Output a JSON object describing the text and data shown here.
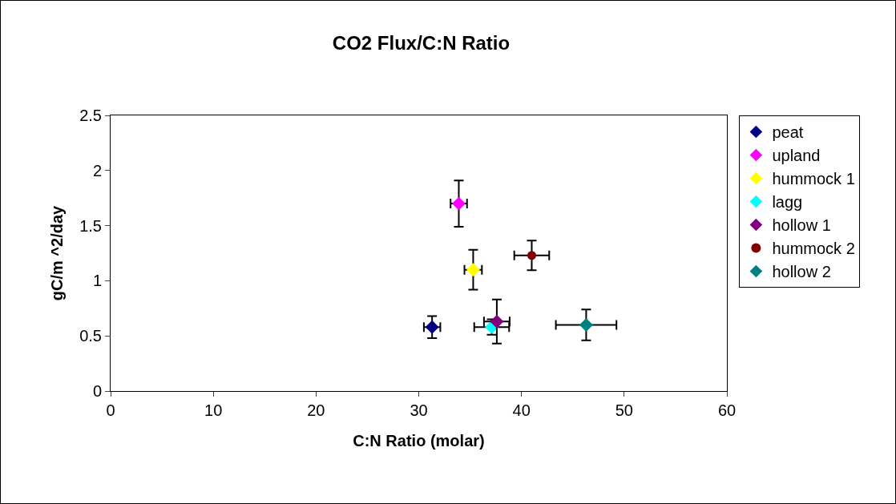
{
  "chart_data": {
    "type": "scatter",
    "title": "CO2 Flux/C:N Ratio",
    "xlabel": "C:N Ratio (molar)",
    "ylabel": "gC/m ^2/day",
    "xlim": [
      0,
      60
    ],
    "xticks": [
      0,
      10,
      20,
      30,
      40,
      50,
      60
    ],
    "ylim": [
      0,
      2.5
    ],
    "yticks": [
      0,
      0.5,
      1,
      1.5,
      2,
      2.5
    ],
    "grid": false,
    "legend": "right",
    "marker": "diamond",
    "series": [
      {
        "name": "peat",
        "color": "#000080",
        "x": [
          31.3
        ],
        "values": [
          0.58
        ],
        "errors": [
          0.1
        ],
        "xerrors": [
          0.8
        ]
      },
      {
        "name": "upland",
        "color": "#ff00ff",
        "x": [
          33.9
        ],
        "values": [
          1.7
        ],
        "errors": [
          0.21
        ],
        "xerrors": [
          0.8
        ]
      },
      {
        "name": "hummock 1",
        "color": "#ffff00",
        "x": [
          35.3
        ],
        "values": [
          1.1
        ],
        "errors": [
          0.18
        ],
        "xerrors": [
          0.85
        ]
      },
      {
        "name": "lagg",
        "color": "#00ffff",
        "x": [
          37.1
        ],
        "values": [
          0.58
        ],
        "errors": [
          0.07
        ],
        "xerrors": [
          1.7
        ]
      },
      {
        "name": "hollow 1",
        "color": "#800080",
        "x": [
          37.6
        ],
        "values": [
          0.63
        ],
        "errors": [
          0.2
        ],
        "xerrors": [
          1.25
        ]
      },
      {
        "name": "hummock 2",
        "color": "#800000",
        "x": [
          41.0
        ],
        "values": [
          1.23
        ],
        "errors": [
          0.135
        ],
        "xerrors": [
          1.7
        ],
        "marker": "circle"
      },
      {
        "name": "hollow 2",
        "color": "#008080",
        "x": [
          46.3
        ],
        "values": [
          0.6
        ],
        "errors": [
          0.14
        ],
        "xerrors": [
          2.95
        ]
      }
    ]
  }
}
